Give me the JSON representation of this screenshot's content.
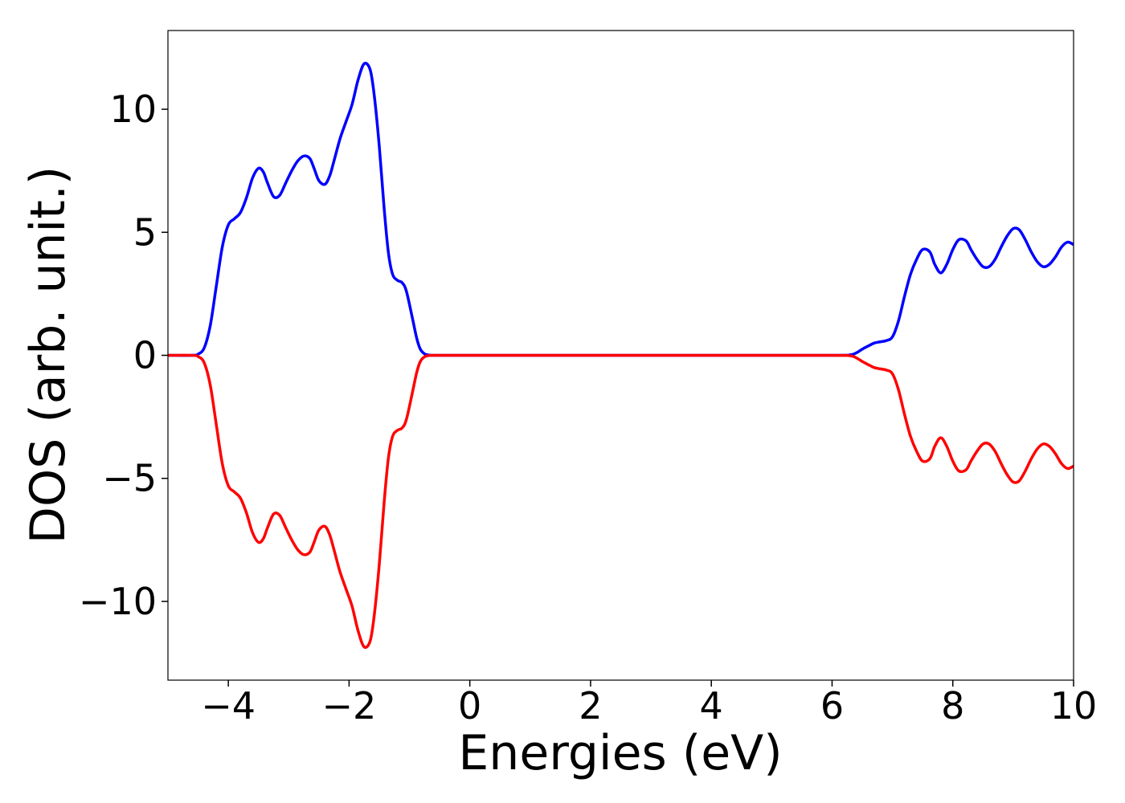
{
  "chart_data": {
    "type": "line",
    "title": "",
    "xlabel": "Energies (eV)",
    "ylabel": "DOS (arb. unit.)",
    "xlim": [
      -5,
      10
    ],
    "ylim": [
      -13.2,
      13.2
    ],
    "grid": false,
    "legend": "none",
    "x_ticks": [
      -4,
      -2,
      0,
      2,
      4,
      6,
      8,
      10
    ],
    "x_tick_labels": [
      "−4",
      "−2",
      "0",
      "2",
      "4",
      "6",
      "8",
      "10"
    ],
    "y_ticks": [
      10,
      5,
      0,
      -5,
      -10
    ],
    "y_tick_labels": [
      "10",
      "5",
      "0",
      "−5",
      "−10"
    ],
    "series": [
      {
        "color": "#0000ff",
        "x": [
          -5.0,
          -4.6,
          -4.5,
          -4.4,
          -4.3,
          -4.2,
          -4.1,
          -4.0,
          -3.9,
          -3.8,
          -3.7,
          -3.6,
          -3.5,
          -3.42,
          -3.35,
          -3.25,
          -3.15,
          -3.05,
          -2.95,
          -2.85,
          -2.75,
          -2.65,
          -2.58,
          -2.5,
          -2.4,
          -2.32,
          -2.25,
          -2.15,
          -2.05,
          -1.95,
          -1.85,
          -1.75,
          -1.65,
          -1.58,
          -1.5,
          -1.42,
          -1.35,
          -1.28,
          -1.2,
          -1.12,
          -1.05,
          -0.95,
          -0.88,
          -0.82,
          -0.75,
          -0.68,
          -0.62,
          -0.55,
          -0.45,
          0.0,
          2.0,
          4.0,
          6.0,
          6.3,
          6.4,
          6.5,
          6.6,
          6.7,
          6.8,
          6.9,
          7.0,
          7.1,
          7.2,
          7.3,
          7.4,
          7.5,
          7.62,
          7.7,
          7.8,
          7.9,
          8.0,
          8.1,
          8.22,
          8.3,
          8.4,
          8.5,
          8.6,
          8.7,
          8.8,
          8.9,
          9.0,
          9.1,
          9.2,
          9.3,
          9.4,
          9.5,
          9.6,
          9.7,
          9.8,
          9.9,
          10.0
        ],
        "y": [
          0.0,
          0.0,
          0.05,
          0.3,
          1.2,
          2.8,
          4.4,
          5.3,
          5.55,
          5.8,
          6.4,
          7.2,
          7.6,
          7.45,
          7.0,
          6.45,
          6.5,
          7.0,
          7.5,
          7.9,
          8.1,
          8.0,
          7.6,
          7.1,
          6.95,
          7.3,
          7.9,
          8.8,
          9.5,
          10.2,
          11.2,
          11.85,
          11.6,
          10.5,
          8.5,
          6.0,
          4.2,
          3.3,
          3.05,
          2.95,
          2.6,
          1.5,
          0.7,
          0.25,
          0.06,
          0.01,
          0.0,
          0.0,
          0.0,
          0.0,
          0.0,
          0.0,
          0.0,
          0.02,
          0.1,
          0.25,
          0.38,
          0.5,
          0.55,
          0.6,
          0.75,
          1.4,
          2.4,
          3.3,
          3.9,
          4.3,
          4.2,
          3.7,
          3.35,
          3.7,
          4.3,
          4.7,
          4.65,
          4.3,
          3.9,
          3.6,
          3.6,
          3.9,
          4.4,
          4.85,
          5.15,
          5.1,
          4.7,
          4.2,
          3.8,
          3.6,
          3.7,
          4.0,
          4.4,
          4.6,
          4.5
        ]
      },
      {
        "color": "#ff0000",
        "x": [
          -5.0,
          -4.6,
          -4.5,
          -4.4,
          -4.3,
          -4.2,
          -4.1,
          -4.0,
          -3.9,
          -3.8,
          -3.7,
          -3.6,
          -3.5,
          -3.42,
          -3.35,
          -3.25,
          -3.15,
          -3.05,
          -2.95,
          -2.85,
          -2.75,
          -2.65,
          -2.58,
          -2.5,
          -2.4,
          -2.32,
          -2.25,
          -2.15,
          -2.05,
          -1.95,
          -1.85,
          -1.75,
          -1.65,
          -1.58,
          -1.5,
          -1.42,
          -1.35,
          -1.28,
          -1.2,
          -1.12,
          -1.05,
          -0.95,
          -0.88,
          -0.82,
          -0.75,
          -0.68,
          -0.62,
          -0.55,
          -0.45,
          0.0,
          2.0,
          4.0,
          6.0,
          6.3,
          6.4,
          6.5,
          6.6,
          6.7,
          6.8,
          6.9,
          7.0,
          7.1,
          7.2,
          7.3,
          7.4,
          7.5,
          7.62,
          7.7,
          7.8,
          7.9,
          8.0,
          8.1,
          8.22,
          8.3,
          8.4,
          8.5,
          8.6,
          8.7,
          8.8,
          8.9,
          9.0,
          9.1,
          9.2,
          9.3,
          9.4,
          9.5,
          9.6,
          9.7,
          9.8,
          9.9,
          10.0
        ],
        "y": [
          0.0,
          0.0,
          -0.05,
          -0.3,
          -1.2,
          -2.8,
          -4.4,
          -5.3,
          -5.55,
          -5.8,
          -6.4,
          -7.2,
          -7.6,
          -7.45,
          -7.0,
          -6.45,
          -6.5,
          -7.0,
          -7.5,
          -7.9,
          -8.1,
          -8.0,
          -7.6,
          -7.1,
          -6.95,
          -7.3,
          -7.9,
          -8.8,
          -9.5,
          -10.2,
          -11.2,
          -11.85,
          -11.6,
          -10.5,
          -8.5,
          -6.0,
          -4.2,
          -3.3,
          -3.05,
          -2.95,
          -2.6,
          -1.5,
          -0.7,
          -0.25,
          -0.06,
          -0.01,
          0.0,
          0.0,
          0.0,
          0.0,
          0.0,
          0.0,
          0.0,
          -0.02,
          -0.1,
          -0.25,
          -0.38,
          -0.5,
          -0.55,
          -0.6,
          -0.75,
          -1.4,
          -2.4,
          -3.3,
          -3.9,
          -4.3,
          -4.2,
          -3.7,
          -3.35,
          -3.7,
          -4.3,
          -4.7,
          -4.65,
          -4.3,
          -3.9,
          -3.6,
          -3.6,
          -3.9,
          -4.4,
          -4.85,
          -5.15,
          -5.1,
          -4.7,
          -4.2,
          -3.8,
          -3.6,
          -3.7,
          -4.0,
          -4.4,
          -4.6,
          -4.5
        ]
      }
    ]
  }
}
